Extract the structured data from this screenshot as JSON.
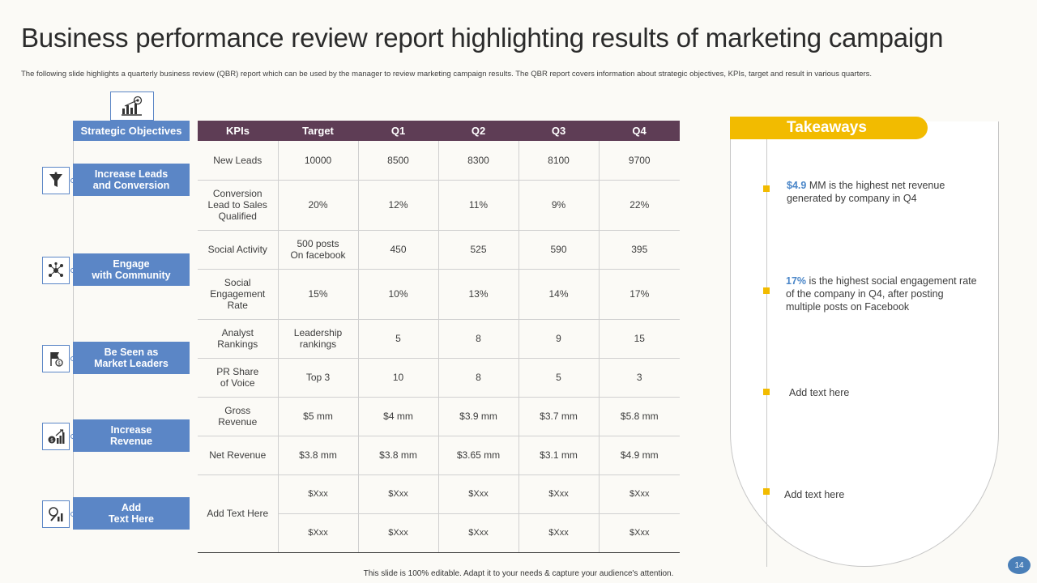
{
  "title": "Business performance review report highlighting results of marketing campaign",
  "subtitle": "The following slide highlights a quarterly business review (QBR) report which can be used by the manager to review marketing campaign results. The QBR report covers information about strategic objectives, KPIs, target and result in various quarters.",
  "objectives": {
    "header": "Strategic Objectives",
    "header_icon": "target-chart-icon",
    "items": [
      {
        "label_1": "Increase Leads",
        "label_2": "and Conversion",
        "icon": "funnel-icon"
      },
      {
        "label_1": "Engage",
        "label_2": "with Community",
        "icon": "network-icon"
      },
      {
        "label_1": "Be Seen as",
        "label_2": "Market Leaders",
        "icon": "flag-icon"
      },
      {
        "label_1": "Increase",
        "label_2": "Revenue",
        "icon": "money-growth-icon"
      },
      {
        "label_1": "Add",
        "label_2": "Text Here",
        "icon": "growth-magnifier-icon"
      }
    ]
  },
  "table": {
    "headers": [
      "KPIs",
      "Target",
      "Q1",
      "Q2",
      "Q3",
      "Q4"
    ],
    "rows": [
      {
        "kpi": [
          "New Leads"
        ],
        "target": [
          "10000"
        ],
        "q": [
          "8500",
          "8300",
          "8100",
          "9700"
        ]
      },
      {
        "kpi": [
          "Conversion",
          "Lead to Sales",
          "Qualified"
        ],
        "target": [
          "20%"
        ],
        "q": [
          "12%",
          "11%",
          "9%",
          "22%"
        ]
      },
      {
        "kpi": [
          "Social Activity"
        ],
        "target": [
          "500 posts",
          "On facebook"
        ],
        "q": [
          "450",
          "525",
          "590",
          "395"
        ]
      },
      {
        "kpi": [
          "Social",
          "Engagement",
          "Rate"
        ],
        "target": [
          "15%"
        ],
        "q": [
          "10%",
          "13%",
          "14%",
          "17%"
        ]
      },
      {
        "kpi": [
          "Analyst",
          "Rankings"
        ],
        "target": [
          "Leadership",
          "rankings"
        ],
        "q": [
          "5",
          "8",
          "9",
          "15"
        ]
      },
      {
        "kpi": [
          "PR Share",
          "of Voice"
        ],
        "target": [
          "Top 3"
        ],
        "q": [
          "10",
          "8",
          "5",
          "3"
        ]
      },
      {
        "kpi": [
          "Gross",
          "Revenue"
        ],
        "target": [
          "$5 mm"
        ],
        "q": [
          "$4 mm",
          "$3.9 mm",
          "$3.7 mm",
          "$5.8 mm"
        ]
      },
      {
        "kpi": [
          "Net Revenue"
        ],
        "target": [
          "$3.8 mm"
        ],
        "q": [
          "$3.8 mm",
          "$3.65 mm",
          "$3.1 mm",
          "$4.9 mm"
        ]
      }
    ],
    "placeholder_kpi": "Add Text Here",
    "placeholder_rows": [
      [
        "$Xxx",
        "$Xxx",
        "$Xxx",
        "$Xxx",
        "$Xxx"
      ],
      [
        "$Xxx",
        "$Xxx",
        "$Xxx",
        "$Xxx",
        "$Xxx"
      ]
    ]
  },
  "takeaways": {
    "title": "Takeaways",
    "items": [
      {
        "highlight": "$4.9",
        "text": " MM is the highest net revenue generated  by company in Q4"
      },
      {
        "highlight": "17%",
        "text": "  is the highest social engagement rate of the company in Q4, after posting multiple posts on Facebook"
      },
      {
        "highlight": "",
        "text": "Add text here"
      },
      {
        "highlight": "",
        "text": "Add text here"
      }
    ]
  },
  "footer": "This slide is 100% editable.  Adapt it to your needs & capture your audience's attention.",
  "page_number": "14",
  "colors": {
    "accent_blue": "#5b86c6",
    "header_purple": "#5e3d55",
    "takeaway_yellow": "#f2bb00",
    "highlight_blue": "#4a86c8"
  }
}
